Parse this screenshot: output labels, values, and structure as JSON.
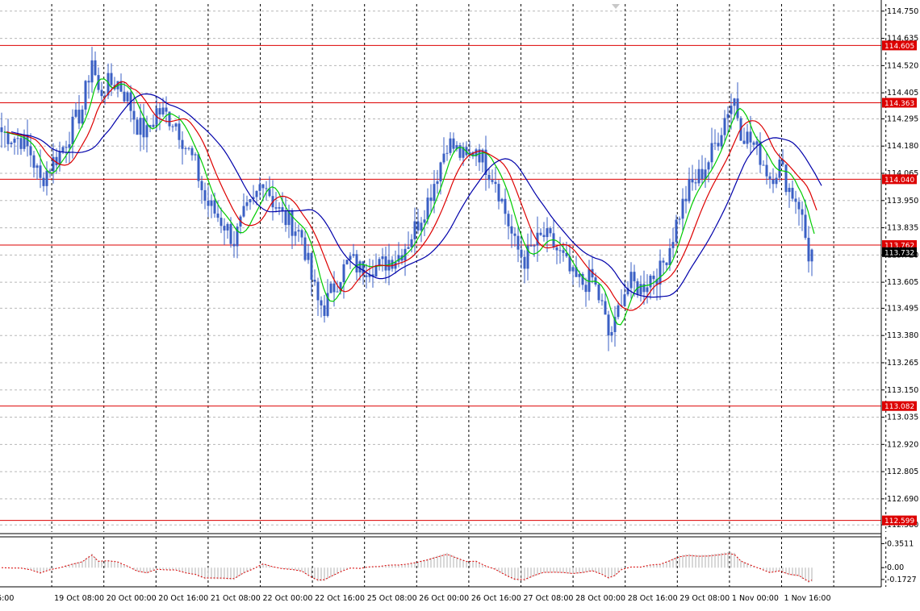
{
  "chart_data": {
    "type": "candlestick",
    "grid": true,
    "y_axis": {
      "min": 112.55,
      "max": 114.78,
      "ticks": [
        "114.750",
        "114.635",
        "114.520",
        "114.405",
        "114.295",
        "114.180",
        "114.065",
        "113.950",
        "113.835",
        "113.720",
        "113.605",
        "113.495",
        "113.380",
        "113.265",
        "113.150",
        "113.035",
        "112.920",
        "112.805",
        "112.690",
        "112.580"
      ]
    },
    "x_axis": {
      "labels": [
        "16:00",
        "19 Oct 08:00",
        "20 Oct 00:00",
        "20 Oct 16:00",
        "21 Oct 08:00",
        "22 Oct 00:00",
        "22 Oct 16:00",
        "25 Oct 08:00",
        "26 Oct 00:00",
        "26 Oct 16:00",
        "27 Oct 08:00",
        "28 Oct 00:00",
        "28 Oct 16:00",
        "29 Oct 08:00",
        "1 Nov 00:00",
        "1 Nov 16:00"
      ]
    },
    "price_anchors": [
      [
        0,
        114.24
      ],
      [
        3,
        114.22
      ],
      [
        6,
        114.21
      ],
      [
        9,
        114.15
      ],
      [
        12,
        114.03
      ],
      [
        15,
        114.1
      ],
      [
        18,
        114.15
      ],
      [
        22,
        114.26
      ],
      [
        25,
        114.34
      ],
      [
        28,
        114.55
      ],
      [
        30,
        114.4
      ],
      [
        33,
        114.44
      ],
      [
        36,
        114.45
      ],
      [
        39,
        114.38
      ],
      [
        42,
        114.27
      ],
      [
        45,
        114.23
      ],
      [
        48,
        114.33
      ],
      [
        51,
        114.31
      ],
      [
        54,
        114.28
      ],
      [
        57,
        114.18
      ],
      [
        60,
        114.1
      ],
      [
        63,
        113.95
      ],
      [
        66,
        113.9
      ],
      [
        69,
        113.85
      ],
      [
        72,
        113.78
      ],
      [
        75,
        113.88
      ],
      [
        78,
        113.94
      ],
      [
        81,
        114.05
      ],
      [
        84,
        113.95
      ],
      [
        87,
        113.88
      ],
      [
        90,
        113.85
      ],
      [
        93,
        113.8
      ],
      [
        96,
        113.62
      ],
      [
        98,
        113.52
      ],
      [
        100,
        113.5
      ],
      [
        102,
        113.56
      ],
      [
        105,
        113.64
      ],
      [
        108,
        113.7
      ],
      [
        111,
        113.66
      ],
      [
        114,
        113.68
      ],
      [
        117,
        113.67
      ],
      [
        120,
        113.7
      ],
      [
        123,
        113.72
      ],
      [
        126,
        113.78
      ],
      [
        129,
        113.86
      ],
      [
        132,
        113.95
      ],
      [
        135,
        114.07
      ],
      [
        138,
        114.2
      ],
      [
        141,
        114.16
      ],
      [
        144,
        114.12
      ],
      [
        147,
        114.18
      ],
      [
        150,
        114.1
      ],
      [
        153,
        114.04
      ],
      [
        156,
        113.9
      ],
      [
        159,
        113.76
      ],
      [
        162,
        113.7
      ],
      [
        165,
        113.76
      ],
      [
        168,
        113.8
      ],
      [
        171,
        113.76
      ],
      [
        174,
        113.7
      ],
      [
        177,
        113.62
      ],
      [
        180,
        113.6
      ],
      [
        183,
        113.62
      ],
      [
        186,
        113.5
      ],
      [
        188,
        113.38
      ],
      [
        190,
        113.42
      ],
      [
        192,
        113.55
      ],
      [
        195,
        113.6
      ],
      [
        198,
        113.58
      ],
      [
        201,
        113.63
      ],
      [
        204,
        113.65
      ],
      [
        207,
        113.76
      ],
      [
        210,
        113.9
      ],
      [
        213,
        114.0
      ],
      [
        216,
        114.05
      ],
      [
        219,
        114.12
      ],
      [
        222,
        114.22
      ],
      [
        225,
        114.34
      ],
      [
        227,
        114.38
      ],
      [
        229,
        114.25
      ],
      [
        232,
        114.2
      ],
      [
        235,
        114.14
      ],
      [
        238,
        114.05
      ],
      [
        241,
        114.1
      ],
      [
        244,
        114.0
      ],
      [
        247,
        113.94
      ],
      [
        250,
        113.72
      ],
      [
        251,
        113.73
      ]
    ],
    "series": [
      {
        "type": "ma",
        "period": 5,
        "color": "#00cc00"
      },
      {
        "type": "ma",
        "period": 10,
        "color": "#dd0000"
      },
      {
        "type": "ma",
        "period": 20,
        "color": "#0000aa"
      }
    ],
    "horizontal_levels": [
      "114.605",
      "114.363",
      "114.040",
      "113.762",
      "113.082",
      "112.599"
    ],
    "bid_price": "113.732",
    "oscillator": {
      "ticks": [
        "0.3511",
        "0.00",
        "-0.1727"
      ],
      "min": -0.28,
      "max": 0.45
    },
    "colors": {
      "candle": "#3a5fc4",
      "level": "#dd0000",
      "grid": "#b8b8b8",
      "bid_tag": "#000000"
    }
  }
}
